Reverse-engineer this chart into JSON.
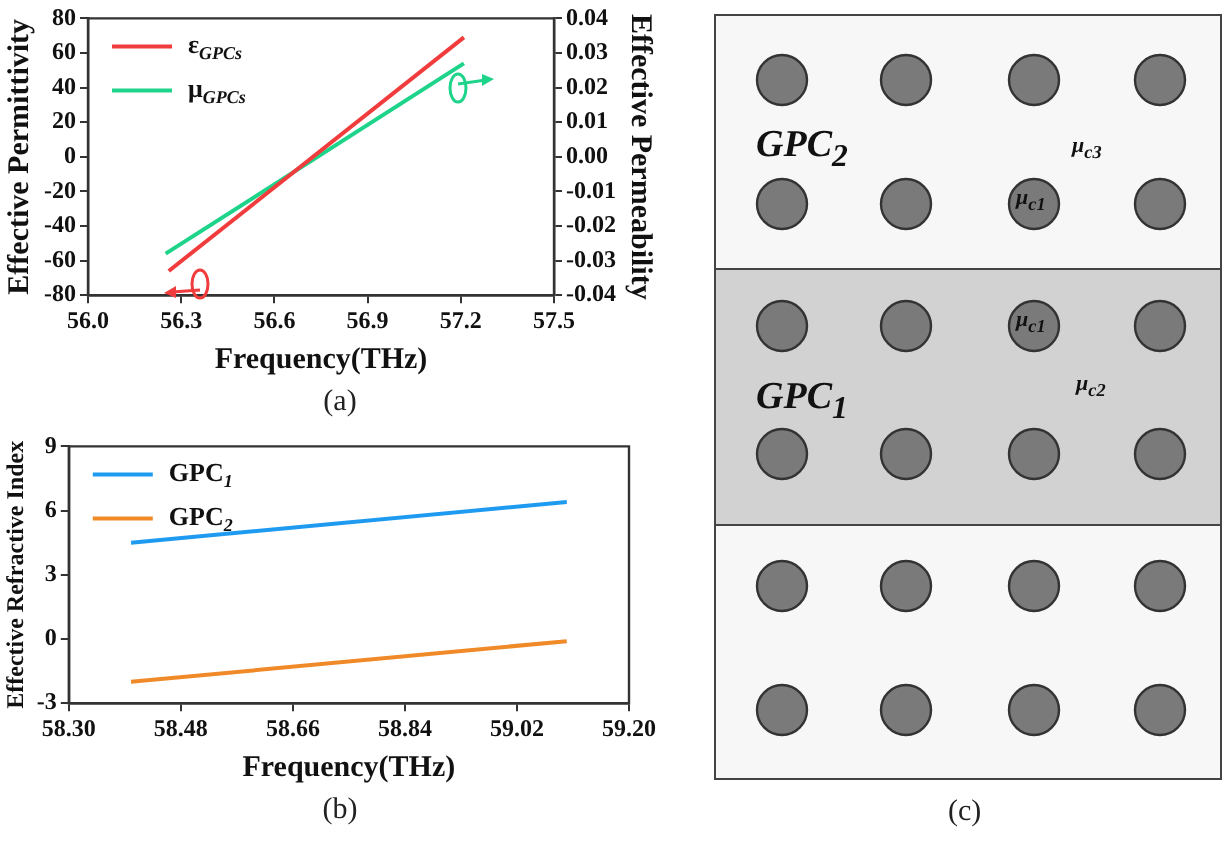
{
  "chart_data": [
    {
      "type": "line",
      "xlabel": "Frequency(THz)",
      "ylabel": "Effective Permittivity",
      "y2label": "Effective Permeability",
      "series": [
        {
          "name": "ε$_{GPCs}$",
          "color": "#f03c3c",
          "x": [
            56.26,
            57.21
          ],
          "values": [
            -66,
            69
          ]
        },
        {
          "name": "μ$_{GPCs}$",
          "color": "#1ed38a",
          "x": [
            56.25,
            57.21
          ],
          "values": [
            -0.028,
            0.027
          ],
          "axis": "y2"
        }
      ],
      "xlim": [
        56.0,
        57.5
      ],
      "xticks": [
        {
          "value": 56.0,
          "label": "56.0"
        },
        56.3,
        56.6,
        56.9,
        57.2,
        57.5
      ],
      "ylim": [
        -80,
        80
      ],
      "yticks": [
        -80,
        -60,
        -40,
        -20,
        0,
        20,
        40,
        60,
        80
      ],
      "y2lim": [
        -0.04,
        0.04
      ],
      "y2ticks": [
        {
          "value": -0.04,
          "label": "-0.04"
        },
        {
          "value": -0.03,
          "label": "-0.03"
        },
        {
          "value": -0.02,
          "label": "-0.02"
        },
        {
          "value": -0.01,
          "label": "-0.01"
        },
        {
          "value": 0,
          "label": "0.00"
        },
        {
          "value": 0.01,
          "label": "0.01"
        },
        {
          "value": 0.02,
          "label": "0.02"
        },
        {
          "value": 0.03,
          "label": "0.03"
        },
        {
          "value": 0.04,
          "label": "0.04"
        }
      ],
      "grid": false,
      "legend": "top left",
      "annotations": [
        "(a)"
      ]
    },
    {
      "type": "line",
      "xlabel": "Frequency(THz)",
      "ylabel": "Effective Refractive Index",
      "series": [
        {
          "name": "GPC$_{1}$",
          "color": "#1e9bf0",
          "x": [
            58.4,
            59.1
          ],
          "values": [
            4.5,
            6.4
          ]
        },
        {
          "name": "GPC$_{2}$",
          "color": "#f08a28",
          "x": [
            58.4,
            59.1
          ],
          "values": [
            -2.0,
            -0.1
          ]
        }
      ],
      "xlim": [
        58.3,
        59.2
      ],
      "xticks": [
        {
          "value": 58.3,
          "label": "58.30"
        },
        58.48,
        58.66,
        58.84,
        59.02,
        {
          "value": 59.2,
          "label": "59.20"
        }
      ],
      "ylim": [
        -3,
        9
      ],
      "yticks": [
        -3,
        0,
        3,
        6,
        9
      ],
      "grid": false,
      "legend": "top left",
      "annotations": [
        "(b)"
      ]
    },
    {
      "type": "other",
      "annotations": [
        "GPC$_{2}$",
        "μ$_{c3}$",
        "μ$_{c1}$",
        "μ$_{c1}$",
        "GPC$_{1}$",
        "μ$_{c2}$",
        "(c)"
      ]
    }
  ]
}
